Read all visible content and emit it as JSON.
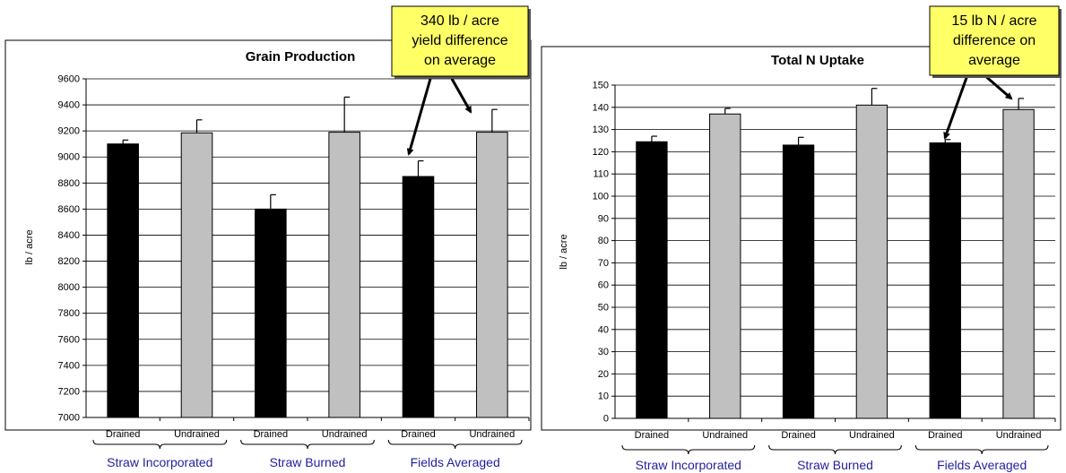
{
  "chart_data": [
    {
      "type": "bar",
      "title": "Grain Production",
      "ylabel": "lb / acre",
      "xlabel": "",
      "ylim": [
        7000,
        9600
      ],
      "ytick_step": 200,
      "yticks": [
        "7000",
        "7200",
        "7400",
        "7600",
        "7800",
        "8000",
        "8200",
        "8400",
        "8600",
        "8800",
        "9000",
        "9200",
        "9400",
        "9600"
      ],
      "grid": true,
      "categories": [
        "Drained",
        "Undrained",
        "Drained",
        "Undrained",
        "Drained",
        "Undrained"
      ],
      "values": [
        9100,
        9185,
        8600,
        9190,
        8850,
        9190
      ],
      "error_bars": [
        30,
        100,
        110,
        270,
        120,
        175
      ],
      "bar_colors": [
        "#000000",
        "#c0c0c0",
        "#000000",
        "#c0c0c0",
        "#000000",
        "#c0c0c0"
      ],
      "groups": [
        "Straw Incorporated",
        "Straw Burned",
        "Fields Averaged"
      ],
      "callout": [
        "340 lb / acre",
        "yield difference",
        "on average"
      ],
      "callout_targets": [
        4,
        5
      ]
    },
    {
      "type": "bar",
      "title": "Total N Uptake",
      "ylabel": "lb / acre",
      "xlabel": "",
      "ylim": [
        0,
        150
      ],
      "ytick_step": 10,
      "yticks": [
        "0",
        "10",
        "20",
        "30",
        "40",
        "50",
        "60",
        "70",
        "80",
        "90",
        "100",
        "110",
        "120",
        "130",
        "140",
        "150"
      ],
      "grid": true,
      "categories": [
        "Drained",
        "Undrained",
        "Drained",
        "Undrained",
        "Drained",
        "Undrained"
      ],
      "values": [
        124.5,
        137,
        123,
        141,
        124,
        139
      ],
      "error_bars": [
        2.5,
        2.5,
        3.5,
        7.5,
        1.5,
        5
      ],
      "bar_colors": [
        "#000000",
        "#c0c0c0",
        "#000000",
        "#c0c0c0",
        "#000000",
        "#c0c0c0"
      ],
      "groups": [
        "Straw Incorporated",
        "Straw Burned",
        "Fields Averaged"
      ],
      "callout": [
        "15 lb N / acre",
        "difference on",
        "average"
      ],
      "callout_targets": [
        4,
        5
      ]
    }
  ],
  "colors": {
    "callout_fill": "#ffff66",
    "group_label": "#1f1fa0",
    "grid": "#000000"
  }
}
